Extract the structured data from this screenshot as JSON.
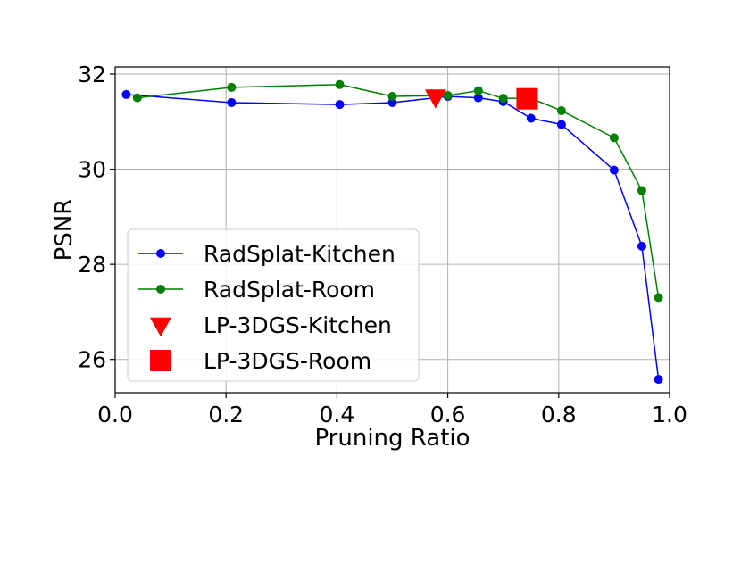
{
  "chart_data": {
    "type": "line",
    "xlabel": "Pruning Ratio",
    "ylabel": "PSNR",
    "xlim": [
      0.0,
      1.0
    ],
    "ylim": [
      25.3,
      32.15
    ],
    "xticks": [
      0.0,
      0.2,
      0.4,
      0.6,
      0.8,
      1.0
    ],
    "xtick_labels": [
      "0.0",
      "0.2",
      "0.4",
      "0.6",
      "0.8",
      "1.0"
    ],
    "yticks": [
      26,
      28,
      30,
      32
    ],
    "ytick_labels": [
      "26",
      "28",
      "30",
      "32"
    ],
    "grid": true,
    "legend_position": "lower-left",
    "series": [
      {
        "name": "RadSplat-Kitchen",
        "color": "#0000ff",
        "marker": "circle",
        "style": "line",
        "x": [
          0.02,
          0.21,
          0.405,
          0.5,
          0.6,
          0.655,
          0.7,
          0.75,
          0.805,
          0.9,
          0.95,
          0.98
        ],
        "y": [
          31.57,
          31.4,
          31.36,
          31.4,
          31.53,
          31.5,
          31.42,
          31.07,
          30.94,
          29.98,
          28.38,
          25.58
        ]
      },
      {
        "name": "RadSplat-Room",
        "color": "#008000",
        "marker": "circle",
        "style": "line",
        "x": [
          0.04,
          0.21,
          0.405,
          0.5,
          0.6,
          0.655,
          0.7,
          0.75,
          0.805,
          0.9,
          0.95,
          0.98
        ],
        "y": [
          31.5,
          31.72,
          31.78,
          31.53,
          31.55,
          31.65,
          31.49,
          31.49,
          31.23,
          30.66,
          29.55,
          27.3
        ]
      },
      {
        "name": "LP-3DGS-Kitchen",
        "color": "#ff0000",
        "marker": "triangle-down",
        "style": "point",
        "x": [
          0.578
        ],
        "y": [
          31.52
        ]
      },
      {
        "name": "LP-3DGS-Room",
        "color": "#ff0000",
        "marker": "square",
        "style": "point",
        "x": [
          0.743
        ],
        "y": [
          31.48
        ]
      }
    ]
  }
}
